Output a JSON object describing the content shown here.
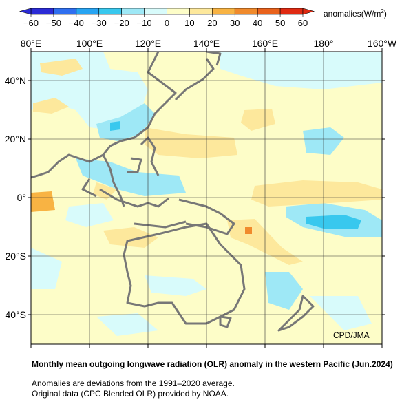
{
  "colorbar": {
    "label": "anomalies(W/m",
    "label_sup": "2",
    "label_close": ")",
    "ticks": [
      "−60",
      "−50",
      "−40",
      "−30",
      "−20",
      "−10",
      "0",
      "10",
      "20",
      "30",
      "40",
      "50",
      "60"
    ],
    "colors": [
      "#2b2bd6",
      "#2f6ff0",
      "#27a4f2",
      "#38c8ee",
      "#9ee8f6",
      "#d8fbfb",
      "#fdfdc8",
      "#fde89c",
      "#f8b343",
      "#f08a2c",
      "#e9621c",
      "#e02a12"
    ]
  },
  "map": {
    "lon_labels": [
      "80°E",
      "100°E",
      "120°E",
      "140°E",
      "160°E",
      "180°",
      "160°W"
    ],
    "lat_labels": [
      "40°N",
      "20°N",
      "0°",
      "20°S",
      "40°S"
    ],
    "credit": "CPD/JMA"
  },
  "caption": {
    "title": "Monthly mean outgoing longwave radiation (OLR) anomaly in the western Pacific (Jun.2024)",
    "line1": "Anomalies are deviations from the 1991–2020 average.",
    "line2": "Original data (CPC Blended OLR) provided by NOAA."
  }
}
